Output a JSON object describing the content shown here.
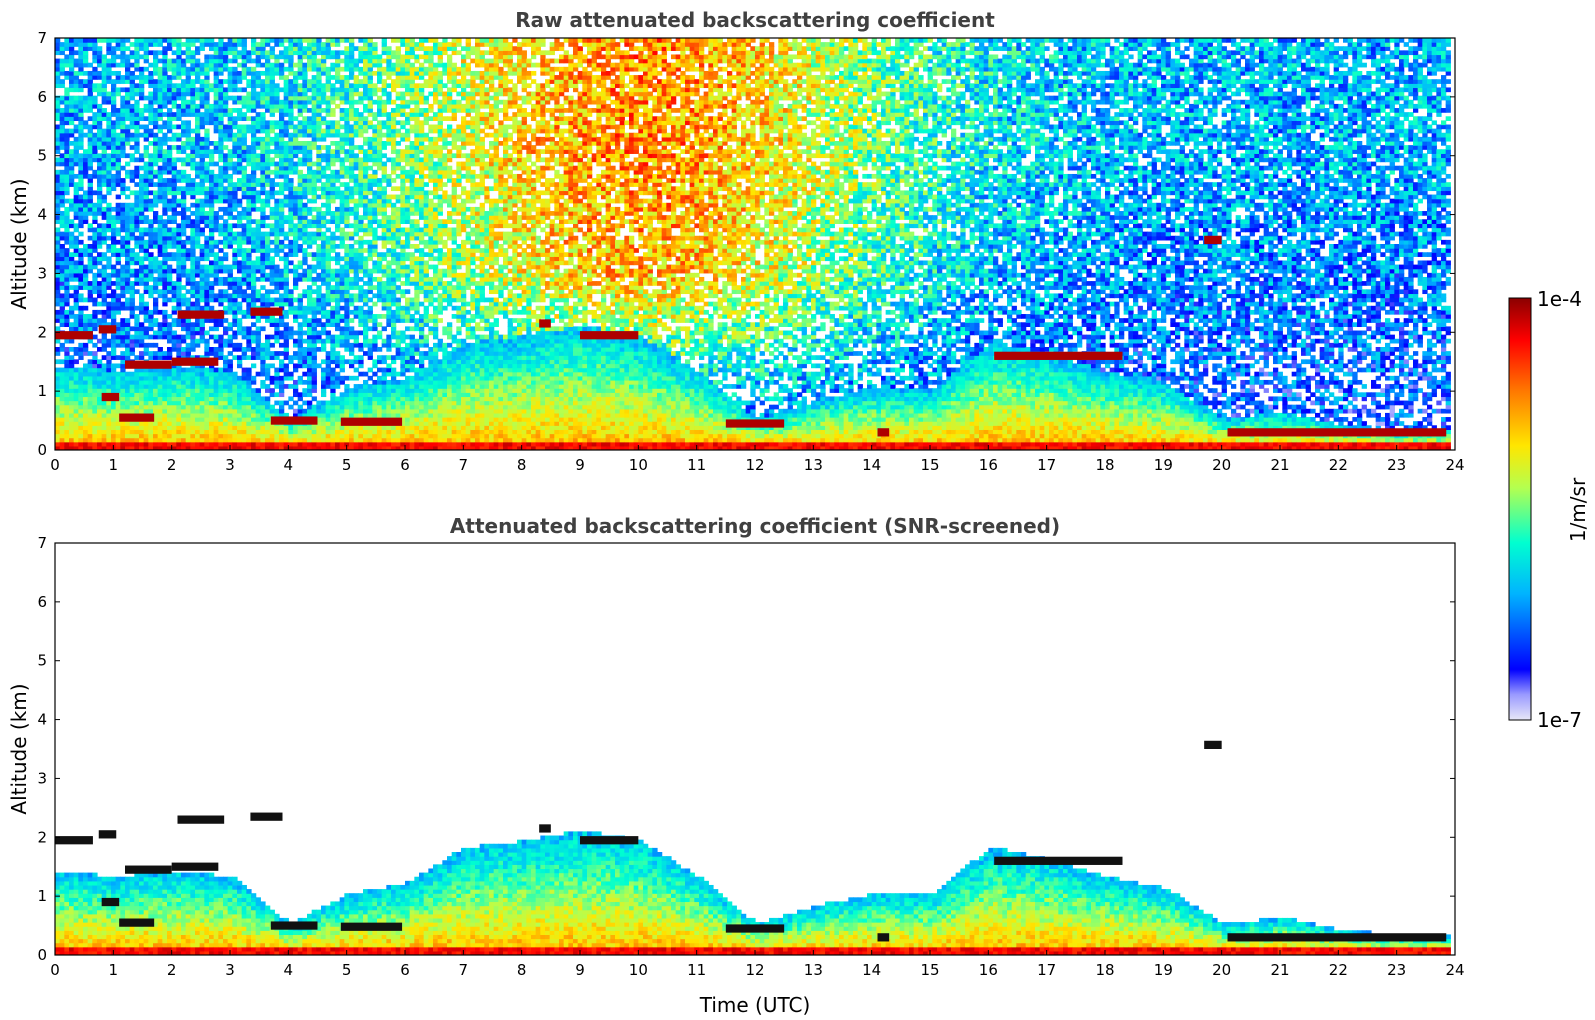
{
  "chart_data": [
    {
      "type": "heatmap",
      "title": "Raw attenuated backscattering coefficient",
      "xlabel": "",
      "ylabel": "Altitude (km)",
      "xlim": [
        0,
        24
      ],
      "ylim": [
        0,
        7
      ],
      "xticks": [
        "0",
        "1",
        "2",
        "3",
        "4",
        "5",
        "6",
        "7",
        "8",
        "9",
        "10",
        "11",
        "12",
        "13",
        "14",
        "15",
        "16",
        "17",
        "18",
        "19",
        "20",
        "21",
        "22",
        "23",
        "24"
      ],
      "yticks": [
        "0",
        "1",
        "2",
        "3",
        "4",
        "5",
        "6",
        "7"
      ],
      "data_end_hour": 23.85,
      "boundary_layer_top_km": [
        [
          0,
          1.4
        ],
        [
          1,
          1.3
        ],
        [
          2,
          1.4
        ],
        [
          3,
          1.3
        ],
        [
          4,
          0.5
        ],
        [
          5,
          1.0
        ],
        [
          6,
          1.2
        ],
        [
          7,
          1.8
        ],
        [
          8,
          1.9
        ],
        [
          9,
          2.1
        ],
        [
          10,
          1.9
        ],
        [
          11,
          1.3
        ],
        [
          12,
          0.5
        ],
        [
          13,
          0.8
        ],
        [
          14,
          1.0
        ],
        [
          15,
          1.0
        ],
        [
          16,
          1.8
        ],
        [
          17,
          1.6
        ],
        [
          18,
          1.3
        ],
        [
          19,
          1.1
        ],
        [
          20,
          0.5
        ],
        [
          21,
          0.6
        ],
        [
          22,
          0.4
        ],
        [
          23,
          0.3
        ],
        [
          23.85,
          0.3
        ]
      ],
      "cloud_layers": [
        {
          "t0": 0.0,
          "t1": 0.65,
          "alt": 1.95
        },
        {
          "t0": 0.75,
          "t1": 1.05,
          "alt": 2.05
        },
        {
          "t0": 0.8,
          "t1": 1.1,
          "alt": 0.9
        },
        {
          "t0": 1.1,
          "t1": 1.7,
          "alt": 0.55
        },
        {
          "t0": 1.2,
          "t1": 2.0,
          "alt": 1.45
        },
        {
          "t0": 2.0,
          "t1": 2.8,
          "alt": 1.5
        },
        {
          "t0": 2.1,
          "t1": 2.9,
          "alt": 2.3
        },
        {
          "t0": 3.35,
          "t1": 3.9,
          "alt": 2.35
        },
        {
          "t0": 3.7,
          "t1": 4.5,
          "alt": 0.5
        },
        {
          "t0": 4.9,
          "t1": 5.95,
          "alt": 0.48
        },
        {
          "t0": 8.3,
          "t1": 8.5,
          "alt": 2.15
        },
        {
          "t0": 9.0,
          "t1": 10.0,
          "alt": 1.95
        },
        {
          "t0": 11.5,
          "t1": 12.5,
          "alt": 0.45
        },
        {
          "t0": 14.1,
          "t1": 14.3,
          "alt": 0.3
        },
        {
          "t0": 16.1,
          "t1": 18.3,
          "alt": 1.6
        },
        {
          "t0": 19.7,
          "t1": 20.0,
          "alt": 3.57
        },
        {
          "t0": 20.1,
          "t1": 23.85,
          "alt": 0.3
        }
      ]
    },
    {
      "type": "heatmap",
      "title": "Attenuated backscattering coefficient (SNR-screened)",
      "xlabel": "Time (UTC)",
      "ylabel": "Altitude (km)",
      "xlim": [
        0,
        24
      ],
      "ylim": [
        0,
        7
      ],
      "xticks": [
        "0",
        "1",
        "2",
        "3",
        "4",
        "5",
        "6",
        "7",
        "8",
        "9",
        "10",
        "11",
        "12",
        "13",
        "14",
        "15",
        "16",
        "17",
        "18",
        "19",
        "20",
        "21",
        "22",
        "23",
        "24"
      ],
      "yticks": [
        "0",
        "1",
        "2",
        "3",
        "4",
        "5",
        "6",
        "7"
      ]
    }
  ],
  "colorbar": {
    "label": "1/m/sr",
    "max_label": "1e-4",
    "min_label": "1e-7",
    "scale": "log",
    "colormap": [
      "#e8e8f8",
      "#0000ff",
      "#00b4ff",
      "#00ffd0",
      "#b4ff50",
      "#ffe600",
      "#ff7800",
      "#ff0000",
      "#8b0000"
    ]
  }
}
